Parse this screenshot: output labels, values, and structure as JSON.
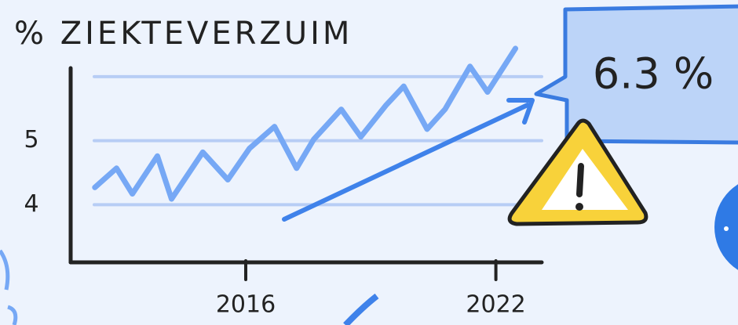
{
  "chart_data": {
    "type": "line",
    "title": "% ZIEKTEVERZUIM",
    "annotation": "6.3 %",
    "x": [
      2012.38,
      2012.9,
      2013.28,
      2013.88,
      2014.22,
      2014.97,
      2015.57,
      2016.09,
      2016.69,
      2017.22,
      2017.63,
      2018.29,
      2018.76,
      2019.36,
      2019.79,
      2020.35,
      2020.78,
      2021.38,
      2021.8,
      2022.47
    ],
    "series": [
      {
        "color": "#76a8f5",
        "values": [
          4.27,
          4.57,
          4.17,
          4.76,
          4.09,
          4.82,
          4.39,
          4.88,
          5.22,
          4.57,
          5.02,
          5.49,
          5.06,
          5.55,
          5.85,
          5.18,
          5.49,
          6.16,
          5.76,
          6.44
        ]
      }
    ],
    "xlim": [
      2011.8,
      2023.1
    ],
    "xticks": [
      2016,
      2022
    ],
    "ylim": [
      3.1,
      6.5
    ],
    "yticks": [
      4,
      5
    ],
    "grid_values": [
      4,
      5,
      6
    ],
    "grid_color": "#b7cdf5"
  }
}
